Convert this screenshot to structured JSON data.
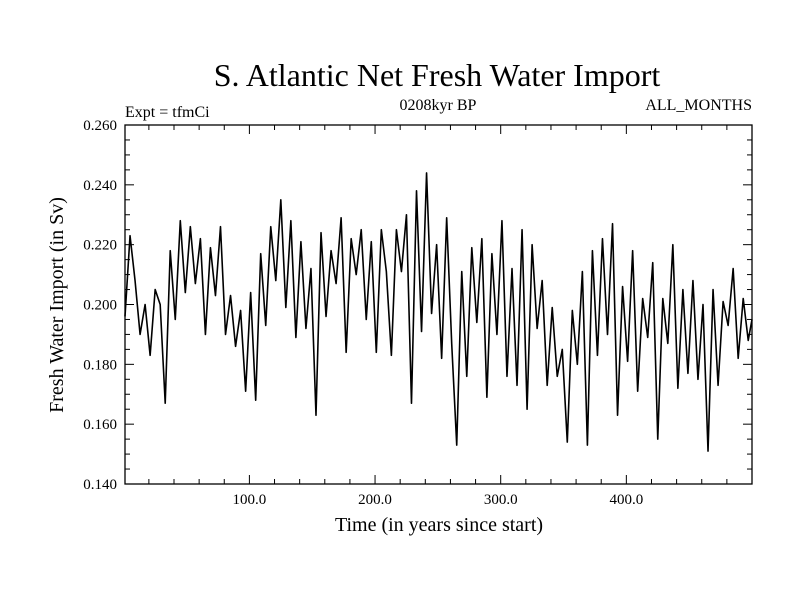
{
  "chart_data": {
    "type": "line",
    "title": "S. Atlantic Net Fresh Water Import",
    "subtitle_left": "Expt = tfmCi",
    "subtitle_center": "0208kyr BP",
    "subtitle_right": "ALL_MONTHS",
    "xlabel": "Time (in years since start)",
    "ylabel": "Fresh Water Import (in Sv)",
    "xlim": [
      1,
      500
    ],
    "ylim": [
      0.14,
      0.26
    ],
    "x_ticks": [
      100,
      200,
      300,
      400
    ],
    "x_tick_labels": [
      "100.0",
      "200.0",
      "300.0",
      "400.0"
    ],
    "y_ticks": [
      0.14,
      0.16,
      0.18,
      0.2,
      0.22,
      0.24,
      0.26
    ],
    "y_tick_labels": [
      "0.140",
      "0.160",
      "0.180",
      "0.200",
      "0.220",
      "0.240",
      "0.260"
    ],
    "series": [
      {
        "name": "net fresh water import",
        "x": [
          1,
          5,
          9,
          13,
          17,
          21,
          25,
          29,
          33,
          37,
          41,
          45,
          49,
          53,
          57,
          61,
          65,
          69,
          73,
          77,
          81,
          85,
          89,
          93,
          97,
          101,
          105,
          109,
          113,
          117,
          121,
          125,
          129,
          133,
          137,
          141,
          145,
          149,
          153,
          157,
          161,
          165,
          169,
          173,
          177,
          181,
          185,
          189,
          193,
          197,
          201,
          205,
          209,
          213,
          217,
          221,
          225,
          229,
          233,
          237,
          241,
          245,
          249,
          253,
          257,
          261,
          265,
          269,
          273,
          277,
          281,
          285,
          289,
          293,
          297,
          301,
          305,
          309,
          313,
          317,
          321,
          325,
          329,
          333,
          337,
          341,
          345,
          349,
          353,
          357,
          361,
          365,
          369,
          373,
          377,
          381,
          385,
          389,
          393,
          397,
          401,
          405,
          409,
          413,
          417,
          421,
          425,
          429,
          433,
          437,
          441,
          445,
          449,
          453,
          457,
          461,
          465,
          469,
          473,
          477,
          481,
          485,
          489,
          493,
          497,
          500
        ],
        "values": [
          0.196,
          0.223,
          0.208,
          0.19,
          0.2,
          0.183,
          0.205,
          0.2,
          0.167,
          0.218,
          0.195,
          0.228,
          0.204,
          0.226,
          0.207,
          0.222,
          0.19,
          0.219,
          0.203,
          0.226,
          0.19,
          0.203,
          0.186,
          0.198,
          0.171,
          0.204,
          0.168,
          0.217,
          0.193,
          0.226,
          0.208,
          0.235,
          0.199,
          0.228,
          0.189,
          0.221,
          0.192,
          0.212,
          0.163,
          0.224,
          0.196,
          0.218,
          0.207,
          0.229,
          0.184,
          0.222,
          0.21,
          0.225,
          0.195,
          0.221,
          0.184,
          0.225,
          0.211,
          0.183,
          0.225,
          0.211,
          0.23,
          0.167,
          0.238,
          0.191,
          0.244,
          0.197,
          0.22,
          0.182,
          0.229,
          0.187,
          0.153,
          0.211,
          0.176,
          0.219,
          0.194,
          0.222,
          0.169,
          0.217,
          0.19,
          0.228,
          0.176,
          0.212,
          0.173,
          0.225,
          0.165,
          0.22,
          0.192,
          0.208,
          0.173,
          0.199,
          0.176,
          0.185,
          0.154,
          0.198,
          0.18,
          0.211,
          0.153,
          0.218,
          0.183,
          0.222,
          0.19,
          0.227,
          0.163,
          0.206,
          0.181,
          0.218,
          0.171,
          0.202,
          0.189,
          0.214,
          0.155,
          0.202,
          0.187,
          0.22,
          0.172,
          0.205,
          0.177,
          0.208,
          0.175,
          0.2,
          0.151,
          0.205,
          0.173,
          0.201,
          0.193,
          0.212,
          0.182,
          0.202,
          0.188,
          0.195
        ]
      }
    ],
    "grid": false,
    "legend": "none"
  }
}
